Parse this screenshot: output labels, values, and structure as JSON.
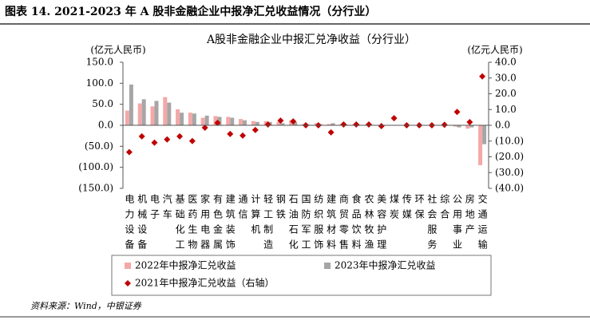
{
  "heading": "图表 14. 2021-2023 年 A 股非金融企业中报净汇兑收益情况（分行业）",
  "source": "资料来源：Wind，中银证券",
  "chart_data": {
    "type": "bar",
    "title": "A股非金融企业中报汇兑净收益（分行业）",
    "ylabel": "(亿元人民币)",
    "y2label": "(亿元人民币)",
    "categories": [
      "电力设备",
      "机械设备",
      "电子",
      "汽车",
      "基础化工",
      "医药生物",
      "家用电器",
      "有色金属",
      "建筑装饰",
      "通信",
      "计算机",
      "轻工制造",
      "钢铁",
      "石油石化",
      "国防军工",
      "纺织服饰",
      "建筑材料",
      "商贸零售",
      "食品饮料",
      "农林牧渔",
      "美容护理",
      "煤炭",
      "传媒",
      "环保",
      "社会服务",
      "综合",
      "公用事业",
      "房地产",
      "交通运输"
    ],
    "series": [
      {
        "name": "2022年中报净汇兑收益",
        "color": "#f4a8a8",
        "values": [
          35,
          52,
          45,
          67,
          38,
          30,
          18,
          22,
          20,
          15,
          10,
          10,
          8,
          12,
          3,
          5,
          3,
          3,
          2,
          2,
          1,
          1,
          1,
          1,
          1,
          0,
          -3,
          -8,
          -95
        ]
      },
      {
        "name": "2023年中报净汇兑收益",
        "color": "#a6a6a6",
        "values": [
          97,
          62,
          58,
          54,
          30,
          28,
          23,
          20,
          18,
          12,
          8,
          8,
          5,
          8,
          2,
          3,
          5,
          2,
          2,
          1,
          1,
          1,
          1,
          1,
          0,
          0,
          -5,
          -5,
          -45
        ]
      },
      {
        "name": "2021年中报净汇兑收益（右轴）",
        "color": "#c00000",
        "axis": "y2",
        "marker": "diamond",
        "values": [
          -17,
          -7,
          -11,
          -9,
          -7,
          -10,
          -1.5,
          1.5,
          -5.5,
          -6.5,
          -3,
          0.5,
          3,
          2.5,
          0,
          0,
          -4.5,
          0.5,
          0.5,
          0.5,
          -0.5,
          4.5,
          0,
          0,
          0,
          0.3,
          8.5,
          2,
          31
        ]
      }
    ],
    "ylim": [
      -150,
      150
    ],
    "yticks": [
      {
        "value": 150,
        "label": "150.0"
      },
      {
        "value": 100,
        "label": "100.0"
      },
      {
        "value": 50,
        "label": "50.0"
      },
      {
        "value": 0,
        "label": "0.0"
      },
      {
        "value": -50,
        "label": "(50.0)"
      },
      {
        "value": -100,
        "label": "(100.0)"
      },
      {
        "value": -150,
        "label": "(150.0)"
      }
    ],
    "y2lim": [
      -40,
      40
    ],
    "y2ticks": [
      {
        "value": 40,
        "label": "40.0"
      },
      {
        "value": 30,
        "label": "30.0"
      },
      {
        "value": 20,
        "label": "20.0"
      },
      {
        "value": 10,
        "label": "10.0"
      },
      {
        "value": 0,
        "label": "0.0"
      },
      {
        "value": -10,
        "label": "(10.0)"
      },
      {
        "value": -20,
        "label": "(20.0)"
      },
      {
        "value": -30,
        "label": "(30.0)"
      },
      {
        "value": -40,
        "label": "(40.0)"
      }
    ],
    "negative_color": "#e00000"
  }
}
